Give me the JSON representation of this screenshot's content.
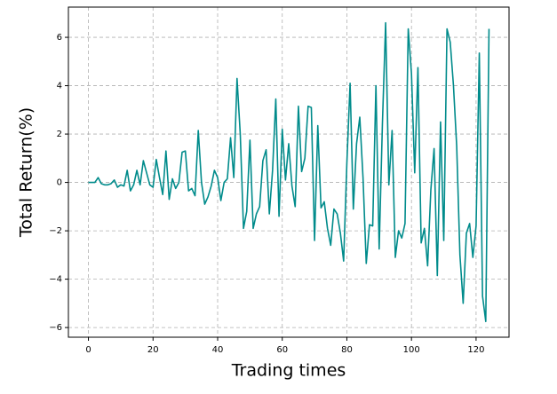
{
  "chart_data": {
    "type": "line",
    "x_label": "Trading times",
    "y_label": "Total Return(%)",
    "x": [
      0,
      1,
      2,
      3,
      4,
      5,
      6,
      7,
      8,
      9,
      10,
      11,
      12,
      13,
      14,
      15,
      16,
      17,
      18,
      19,
      20,
      21,
      22,
      23,
      24,
      25,
      26,
      27,
      28,
      29,
      30,
      31,
      32,
      33,
      34,
      35,
      36,
      37,
      38,
      39,
      40,
      41,
      42,
      43,
      44,
      45,
      46,
      47,
      48,
      49,
      50,
      51,
      52,
      53,
      54,
      55,
      56,
      57,
      58,
      59,
      60,
      61,
      62,
      63,
      64,
      65,
      66,
      67,
      68,
      69,
      70,
      71,
      72,
      73,
      74,
      75,
      76,
      77,
      78,
      79,
      80,
      81,
      82,
      83,
      84,
      85,
      86,
      87,
      88,
      89,
      90,
      91,
      92,
      93,
      94,
      95,
      96,
      97,
      98,
      99,
      100,
      101,
      102,
      103,
      104,
      105,
      106,
      107,
      108,
      109,
      110,
      111,
      112,
      113,
      114,
      115,
      116,
      117,
      118,
      119,
      120,
      121,
      122,
      123,
      124
    ],
    "series": [
      {
        "color": "#008b8b",
        "values": [
          0,
          0,
          0,
          0.2,
          -0.05,
          -0.1,
          -0.1,
          -0.05,
          0.1,
          -0.2,
          -0.1,
          -0.15,
          0.5,
          -0.35,
          -0.1,
          0.5,
          -0.1,
          0.9,
          0.4,
          -0.1,
          -0.2,
          0.95,
          0.2,
          -0.5,
          1.3,
          -0.7,
          0.15,
          -0.25,
          0,
          1.25,
          1.3,
          -0.35,
          -0.25,
          -0.55,
          2.15,
          0,
          -0.9,
          -0.6,
          -0.15,
          0.5,
          0.2,
          -0.75,
          0,
          0.15,
          1.85,
          0.2,
          4.3,
          2.0,
          -1.9,
          -1.2,
          1.75,
          -1.9,
          -1.3,
          -1.0,
          0.9,
          1.35,
          -1.3,
          0.5,
          3.45,
          -1.4,
          2.2,
          0.1,
          1.6,
          -0.15,
          -1.0,
          3.15,
          0.45,
          1.0,
          3.15,
          3.1,
          -2.4,
          2.35,
          -1.05,
          -0.8,
          -1.9,
          -2.6,
          -1.1,
          -1.3,
          -2.1,
          -3.25,
          0.8,
          4.1,
          -1.1,
          1.6,
          2.7,
          0.2,
          -3.35,
          -1.75,
          -1.8,
          4.0,
          -2.75,
          2.4,
          6.6,
          -0.1,
          2.15,
          -3.1,
          -2.0,
          -2.3,
          -1.7,
          6.35,
          4.5,
          0.4,
          4.75,
          -2.5,
          -1.9,
          -3.45,
          -0.3,
          1.4,
          -3.85,
          2.5,
          -2.4,
          6.35,
          5.8,
          4.0,
          1.5,
          -3.0,
          -5.0,
          -2.1,
          -1.7,
          -3.1,
          -1.8,
          5.35,
          -4.7,
          -5.75,
          6.35
        ]
      }
    ],
    "xlim": [
      -6.2,
      130.2
    ],
    "ylim": [
      -6.4,
      7.25
    ],
    "xticks": [
      0,
      20,
      40,
      60,
      80,
      100,
      120
    ],
    "yticks": [
      {
        "value": -6,
        "label": "−6"
      },
      {
        "value": -4,
        "label": "−4"
      },
      {
        "value": -2,
        "label": "−2"
      },
      0,
      2,
      4,
      6
    ],
    "grid": true
  }
}
